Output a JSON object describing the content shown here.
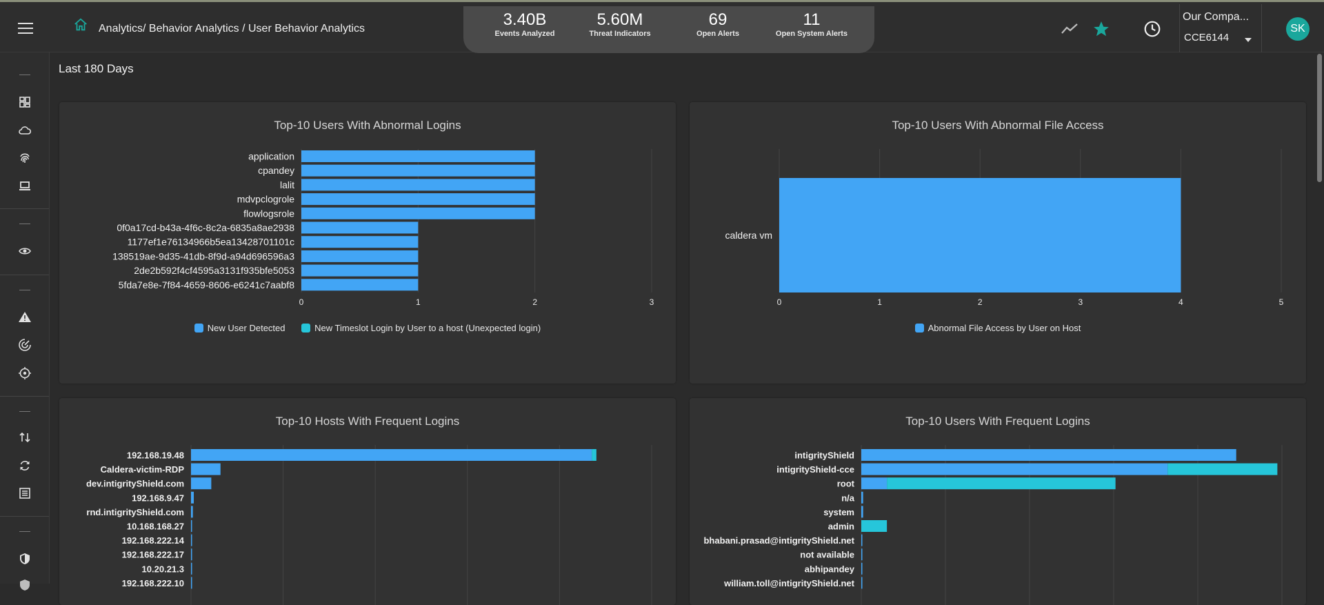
{
  "header": {
    "breadcrumb": "Analytics/ Behavior Analytics / User Behavior Analytics",
    "stats": [
      {
        "value": "3.40B",
        "label": "Events Analyzed"
      },
      {
        "value": "5.60M",
        "label": "Threat Indicators"
      },
      {
        "value": "69",
        "label": "Open Alerts"
      },
      {
        "value": "11",
        "label": "Open System Alerts"
      }
    ],
    "company_name": "Our Compa...",
    "company_code": "CCE6144",
    "avatar_initials": "SK",
    "icons": [
      "menu-icon",
      "home-icon",
      "trend-icon",
      "star-icon",
      "clock-icon",
      "chevron-down-icon"
    ]
  },
  "sidebar": {
    "icons": [
      "dashboard-icon",
      "cloud-icon",
      "fingerprint-icon",
      "laptop-icon",
      "eye-icon",
      "alert-icon",
      "radar-icon",
      "target-icon",
      "sort-icon",
      "refresh-icon",
      "list-icon",
      "shield-icon"
    ]
  },
  "page": {
    "range_label": "Last 180 Days"
  },
  "colors": {
    "primary_bar": "#42a5f5",
    "secondary_bar": "#26c6da",
    "accent": "#1aa79c"
  },
  "chart_data": [
    {
      "type": "bar",
      "orientation": "horizontal",
      "stacked": true,
      "title": "Top-10 Users With Abnormal Logins",
      "categories": [
        "application",
        "cpandey",
        "lalit",
        "mdvpclogrole",
        "flowlogsrole",
        "0f0a17cd-b43a-4f6c-8c2a-6835a8ae2938",
        "1177ef1e76134966b5ea13428701101c",
        "138519ae-9d35-41db-8f9d-a94d696596a3",
        "2de2b592f4cf4595a3131f935bfe5053",
        "5fda7e8e-7f84-4659-8606-e6241c7aabf8"
      ],
      "series": [
        {
          "name": "New User Detected",
          "values": [
            2,
            2,
            2,
            2,
            2,
            1,
            1,
            1,
            1,
            1
          ]
        },
        {
          "name": "New Timeslot Login by User to a host (Unexpected login)",
          "values": [
            0,
            0,
            0,
            0,
            0,
            0,
            0,
            0,
            0,
            0
          ]
        }
      ],
      "xlim": [
        0,
        3
      ],
      "xticks": [
        0,
        1,
        2,
        3
      ],
      "grid": true,
      "legend": "bottom"
    },
    {
      "type": "bar",
      "orientation": "horizontal",
      "title": "Top-10 Users With Abnormal File Access",
      "categories": [
        "caldera vm"
      ],
      "series": [
        {
          "name": "Abnormal File Access by User on Host",
          "values": [
            4
          ]
        }
      ],
      "xlim": [
        0,
        5
      ],
      "xticks": [
        0,
        1,
        2,
        3,
        4,
        5
      ],
      "grid": true,
      "legend": "bottom"
    },
    {
      "type": "bar",
      "orientation": "horizontal",
      "stacked": true,
      "title": "Top-10 Hosts With Frequent Logins",
      "categories": [
        "192.168.19.48",
        "Caldera-victim-RDP",
        "dev.intigrityShield.com",
        "192.168.9.47",
        "rnd.intigrityShield.com",
        "10.168.168.27",
        "192.168.222.14",
        "192.168.222.17",
        "10.20.21.3",
        "192.168.222.10"
      ],
      "series": [
        {
          "values": [
            435,
            32,
            22,
            3,
            2,
            1,
            1,
            1,
            1,
            1
          ]
        },
        {
          "values": [
            5,
            0,
            0,
            0,
            0,
            0,
            0,
            0,
            0,
            0
          ]
        }
      ],
      "xlim": [
        0,
        500
      ],
      "grid": true
    },
    {
      "type": "bar",
      "orientation": "horizontal",
      "stacked": true,
      "title": "Top-10 Users With Frequent Logins",
      "categories": [
        "intigrityShield",
        "intigrityShield-cce",
        "root",
        "n/a",
        "system",
        "admin",
        "bhabani.prasad@intigrityShield.net",
        "not available",
        "abhipandey",
        "william.toll@intigrityShield.net"
      ],
      "series": [
        {
          "values": [
            410,
            335,
            28,
            2,
            2,
            0,
            1,
            1,
            1,
            1
          ]
        },
        {
          "values": [
            0,
            120,
            250,
            0,
            0,
            28,
            0,
            0,
            0,
            0
          ]
        }
      ],
      "xlim": [
        0,
        460
      ],
      "grid": true
    }
  ]
}
